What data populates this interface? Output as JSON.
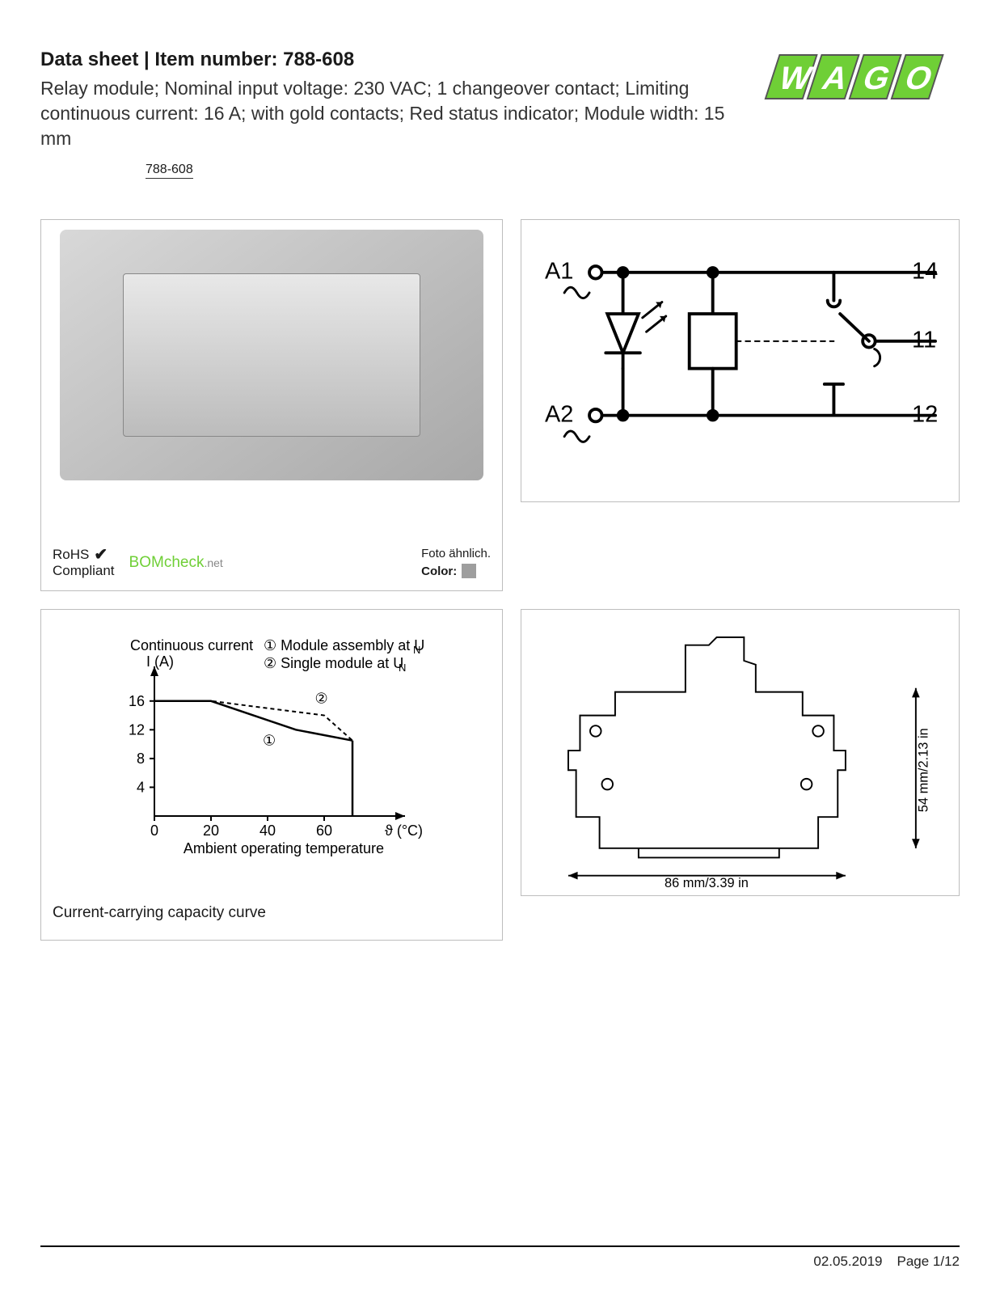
{
  "header": {
    "title": "Data sheet  |  Item number: 788-608",
    "description": "Relay module; Nominal input voltage: 230 VAC; 1 changeover contact; Limiting continuous current: 16 A; with gold contacts; Red status indicator; Module width: 15 mm",
    "badge": "788-608"
  },
  "logo": {
    "text": "WAGO",
    "fill": "#6fcf36",
    "outline": "#555555"
  },
  "photo_panel": {
    "rohs_top": "RoHS",
    "rohs_bottom": "Compliant",
    "check": "✔",
    "bomcheck": "BOMcheck",
    "bomcheck_net": ".net",
    "foto": "Foto ähnlich.",
    "color_label": "Color:",
    "swatch": "#9e9e9e"
  },
  "schematic": {
    "labels": {
      "A1": "A1",
      "A2": "A2",
      "t14": "14",
      "t11": "11",
      "t12": "12"
    },
    "stroke": "#000000",
    "stroke_width": 3
  },
  "chart": {
    "caption": "Current-carrying capacity curve",
    "y_label_top": "Continuous current",
    "y_label_bottom": "I (A)",
    "x_label": "ϑ (°C)",
    "x_label2": "Ambient operating temperature",
    "legend1": "Module assembly at U",
    "legend1_sub": "N",
    "legend2": "Single module at U",
    "legend2_sub": "N",
    "circle1": "①",
    "circle2": "②",
    "y_ticks": [
      4,
      8,
      12,
      16
    ],
    "x_ticks": [
      0,
      20,
      40,
      60
    ],
    "series1": [
      [
        0,
        16
      ],
      [
        20,
        16
      ],
      [
        50,
        12
      ],
      [
        70,
        10.5
      ]
    ],
    "series2": [
      [
        0,
        16
      ],
      [
        20,
        16
      ],
      [
        60,
        14
      ],
      [
        70,
        10.5
      ]
    ],
    "axis_color": "#000000",
    "line_color": "#000000",
    "font_size": 18
  },
  "dimensions": {
    "width_label": "86 mm/3.39 in",
    "height_label": "54 mm/2.13 in",
    "stroke": "#000000"
  },
  "footer": {
    "date": "02.05.2019",
    "page": "Page 1/12"
  }
}
